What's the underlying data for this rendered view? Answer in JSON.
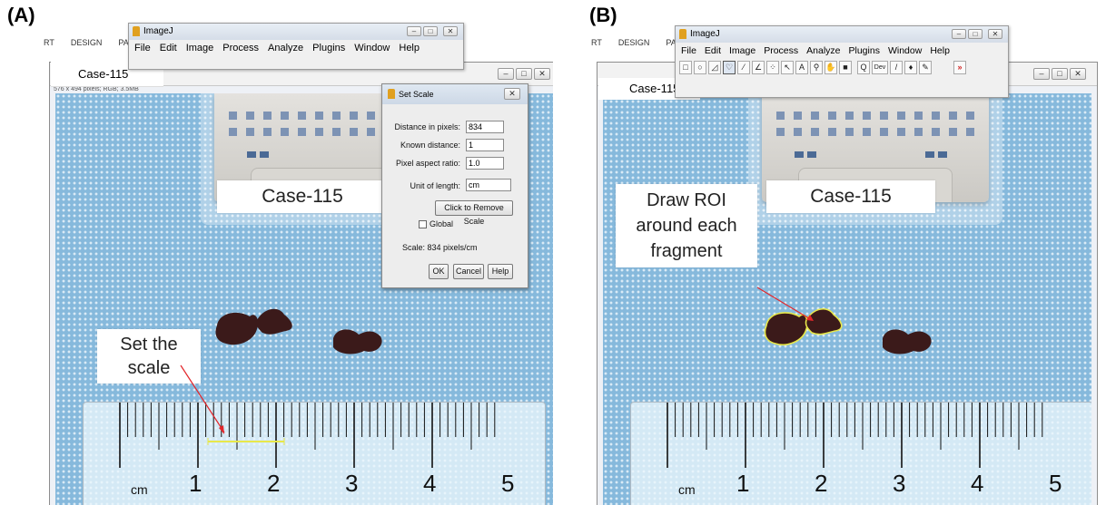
{
  "panels": {
    "a": {
      "label": "(A)",
      "ribbon": [
        "RT",
        "DESIGN",
        "PAGE"
      ],
      "imagej_title": "ImageJ",
      "menu": [
        "File",
        "Edit",
        "Image",
        "Process",
        "Analyze",
        "Plugins",
        "Window",
        "Help"
      ],
      "window_title": "Case-115",
      "info_line": "576 x 494 pixels; RGB; 3.5MB",
      "photo_label": "Case-115",
      "callout": "Set the scale",
      "ruler": {
        "unit": "cm",
        "numbers": [
          "1",
          "2",
          "3",
          "4",
          "5"
        ]
      }
    },
    "b": {
      "label": "(B)",
      "ribbon": [
        "RT",
        "DESIGN",
        "PAGE"
      ],
      "imagej_title": "ImageJ",
      "menu": [
        "File",
        "Edit",
        "Image",
        "Process",
        "Analyze",
        "Plugins",
        "Window",
        "Help"
      ],
      "tool_dev": "Dev",
      "tool_more": "»",
      "window_title": "Case-115",
      "photo_label": "Case-115",
      "callout": "Draw ROI around each fragment",
      "ruler": {
        "unit": "cm",
        "numbers": [
          "1",
          "2",
          "3",
          "4",
          "5"
        ]
      }
    }
  },
  "set_scale": {
    "title": "Set Scale",
    "distance_label": "Distance in pixels:",
    "distance_value": "834",
    "known_label": "Known distance:",
    "known_value": "1",
    "aspect_label": "Pixel aspect ratio:",
    "aspect_value": "1.0",
    "unit_label": "Unit of length:",
    "unit_value": "cm",
    "remove_button": "Click to Remove Scale",
    "global_label": "Global",
    "scale_text": "Scale: 834 pixels/cm",
    "ok": "OK",
    "cancel": "Cancel",
    "help": "Help"
  },
  "colors": {
    "annotation": "#e3262a",
    "roi": "#e8e84a",
    "photo_bg": "#86b9dc"
  }
}
